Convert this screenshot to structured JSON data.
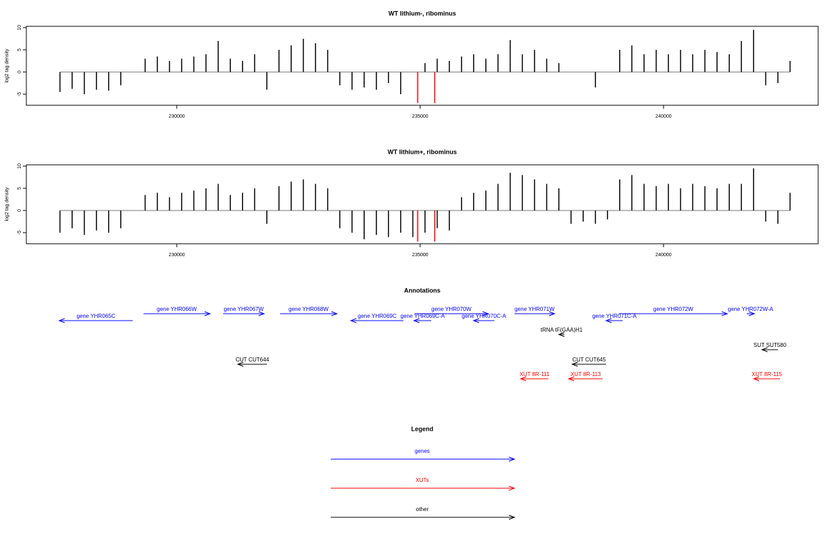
{
  "chart_data": [
    {
      "type": "bar",
      "title": "WT lithium-, ribominus",
      "ylabel": "log2 tag density",
      "xlim": [
        226909,
        243177
      ],
      "ylim": [
        -7.5,
        10.3
      ],
      "xticks": [
        230000,
        235000,
        240000
      ],
      "yticks": [
        -5,
        0,
        5,
        10
      ],
      "series": [
        {
          "color": "#000000",
          "x": [
            227600,
            227850,
            228100,
            228350,
            228600,
            228850,
            229100,
            229350,
            229600,
            229850,
            230100,
            230350,
            230600,
            230850,
            231100,
            231350,
            231600,
            231850,
            232100,
            232350,
            232600,
            232850,
            233100,
            233350,
            233600,
            233850,
            234100,
            234350,
            234600,
            234850,
            235100,
            235350,
            235600,
            235850,
            236100,
            236350,
            236600,
            236850,
            237100,
            237350,
            237600,
            237850,
            238100,
            238350,
            238600,
            238850,
            239100,
            239350,
            239600,
            239850,
            240100,
            240350,
            240600,
            240850,
            241100,
            241350,
            241600,
            241850,
            242100,
            242350,
            242600
          ],
          "values": [
            -4.5,
            -3.8,
            -5,
            -4,
            -4.2,
            -3,
            null,
            3,
            3.5,
            2.5,
            3,
            3.5,
            4,
            7,
            3,
            2.5,
            4,
            -4,
            5,
            6,
            7.5,
            6.5,
            5,
            -3,
            -4,
            -3.5,
            -4,
            -2.5,
            -5,
            null,
            2,
            3,
            2.5,
            3.5,
            4,
            3,
            4,
            7.2,
            4,
            5,
            3,
            2,
            null,
            null,
            -3.5,
            null,
            5,
            6,
            4,
            5,
            4,
            5,
            4,
            5,
            4.5,
            4,
            7,
            9.5,
            -3,
            -2.5,
            2.5
          ]
        },
        {
          "color": "#ff0000",
          "x": [
            234950,
            235300
          ],
          "values": [
            -7,
            -7
          ]
        }
      ]
    },
    {
      "type": "bar",
      "title": "WT lithium+, ribominus",
      "ylabel": "log2 tag density",
      "xlim": [
        226909,
        243177
      ],
      "ylim": [
        -7.5,
        10.3
      ],
      "xticks": [
        230000,
        235000,
        240000
      ],
      "yticks": [
        -5,
        0,
        5,
        10
      ],
      "series": [
        {
          "color": "#000000",
          "x": [
            227600,
            227850,
            228100,
            228350,
            228600,
            228850,
            229100,
            229350,
            229600,
            229850,
            230100,
            230350,
            230600,
            230850,
            231100,
            231350,
            231600,
            231850,
            232100,
            232350,
            232600,
            232850,
            233100,
            233350,
            233600,
            233850,
            234100,
            234350,
            234600,
            234850,
            235100,
            235350,
            235600,
            235850,
            236100,
            236350,
            236600,
            236850,
            237100,
            237350,
            237600,
            237850,
            238100,
            238350,
            238600,
            238850,
            239100,
            239350,
            239600,
            239850,
            240100,
            240350,
            240600,
            240850,
            241100,
            241350,
            241600,
            241850,
            242100,
            242350,
            242600
          ],
          "values": [
            -5,
            -4,
            -5.5,
            -4.5,
            -5,
            -4,
            null,
            3.5,
            4,
            3,
            4,
            4.5,
            5,
            6,
            3.5,
            4,
            5,
            -3,
            5.5,
            6.5,
            7,
            6,
            5,
            -4,
            -5,
            -6.5,
            -5.5,
            -6,
            -5,
            -6,
            -5,
            -4,
            -4.5,
            3,
            4,
            4.5,
            6,
            8.5,
            8,
            7,
            6,
            5,
            -3,
            -2.5,
            -3,
            -2,
            7,
            8,
            6,
            5.5,
            6,
            5,
            6,
            5.5,
            5,
            6,
            6,
            9.5,
            -2.5,
            -3,
            4
          ]
        },
        {
          "color": "#ff0000",
          "x": [
            234950,
            235300
          ],
          "values": [
            -7,
            -7
          ]
        }
      ]
    },
    {
      "type": "annotations",
      "title": "Annotations",
      "xlim": [
        226909,
        243177
      ],
      "features": [
        {
          "name": "gene YHR065C",
          "start": 227584,
          "end": 229094,
          "strand": "-",
          "color": "#0000ff"
        },
        {
          "name": "gene YHR066W",
          "start": 229316,
          "end": 230684,
          "strand": "+",
          "color": "#0000ff"
        },
        {
          "name": "gene YHR067W",
          "start": 230954,
          "end": 231795,
          "strand": "+",
          "color": "#0000ff"
        },
        {
          "name": "gene YHR068W",
          "start": 232122,
          "end": 233291,
          "strand": "+",
          "color": "#0000ff"
        },
        {
          "name": "gene YHR069C",
          "start": 233575,
          "end": 234658,
          "strand": "-",
          "color": "#0000ff"
        },
        {
          "name": "gene YHR069C-A",
          "start": 234872,
          "end": 235228,
          "strand": "-",
          "color": "#0000ff"
        },
        {
          "name": "gene YHR070W",
          "start": 234886,
          "end": 236396,
          "strand": "+",
          "color": "#0000ff"
        },
        {
          "name": "gene YHR070C-A",
          "start": 236097,
          "end": 236524,
          "strand": "-",
          "color": "#0000ff"
        },
        {
          "name": "gene YHR071W",
          "start": 236937,
          "end": 237763,
          "strand": "+",
          "color": "#0000ff"
        },
        {
          "name": "tRNA tF(GAA)H1",
          "start": 237849,
          "end": 237963,
          "strand": "-",
          "color": "#000000"
        },
        {
          "name": "gene YHR071C-A",
          "start": 238820,
          "end": 239162,
          "strand": "-",
          "color": "#0000ff"
        },
        {
          "name": "gene YHR072W",
          "start": 239088,
          "end": 241311,
          "strand": "+",
          "color": "#0000ff"
        },
        {
          "name": "gene YHR072W-A",
          "start": 241710,
          "end": 241867,
          "strand": "+",
          "color": "#0000ff"
        },
        {
          "name": "SUT SUT580",
          "start": 242023,
          "end": 242351,
          "strand": "-",
          "color": "#000000"
        },
        {
          "name": "CUT CUT644",
          "start": 231254,
          "end": 231852,
          "strand": "-",
          "color": "#000000"
        },
        {
          "name": "CUT CUT645",
          "start": 238123,
          "end": 238820,
          "strand": "-",
          "color": "#000000"
        },
        {
          "name": "XUT 8R-111",
          "start": 237066,
          "end": 237635,
          "strand": "-",
          "color": "#ff0000"
        },
        {
          "name": "XUT 8R-113",
          "start": 238052,
          "end": 238750,
          "strand": "-",
          "color": "#ff0000"
        },
        {
          "name": "XUT 8R-115",
          "start": 241853,
          "end": 242394,
          "strand": "-",
          "color": "#ff0000"
        }
      ],
      "legend": {
        "title": "Legend",
        "items": [
          {
            "name": "genes",
            "color": "#0000ff"
          },
          {
            "name": "XUTs",
            "color": "#ff0000"
          },
          {
            "name": "other",
            "color": "#000000"
          }
        ]
      }
    }
  ]
}
